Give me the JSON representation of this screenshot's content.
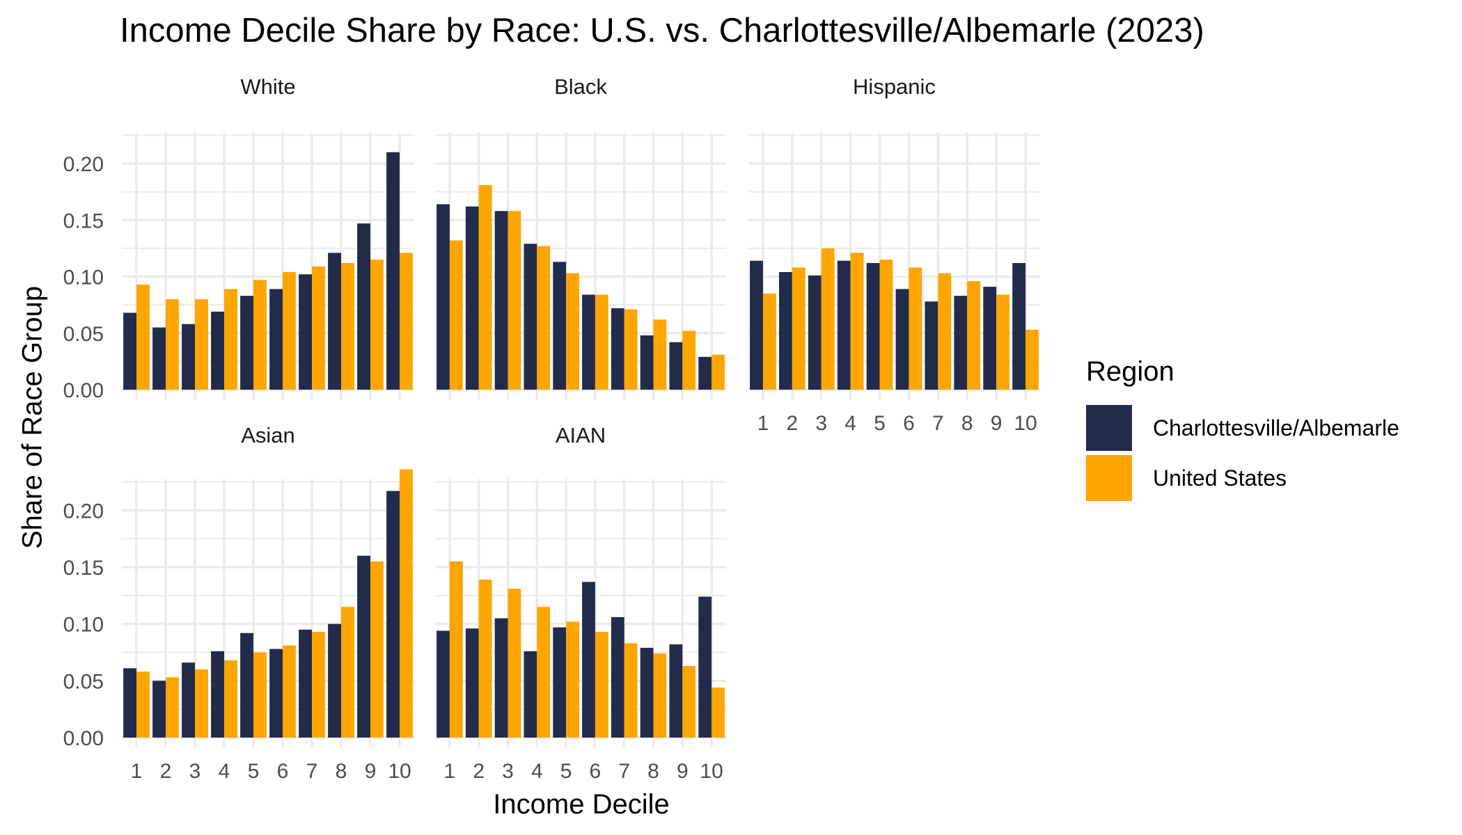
{
  "title": "Income Decile Share by Race: U.S. vs. Charlottesville/Albemarle (2023)",
  "colors": {
    "charlottesville": "#222b4a",
    "united_states": "#ffa500",
    "grid": "#ebebeb",
    "tick_text": "#4d4d4d"
  },
  "chart_data": {
    "type": "bar",
    "title": "Income Decile Share by Race: U.S. vs. Charlottesville/Albemarle (2023)",
    "xlabel": "Income Decile",
    "ylabel": "Share of Race Group",
    "ylim": [
      0,
      0.24
    ],
    "yticks": [
      "0.00",
      "0.05",
      "0.10",
      "0.15",
      "0.20"
    ],
    "categories": [
      "1",
      "2",
      "3",
      "4",
      "5",
      "6",
      "7",
      "8",
      "9",
      "10"
    ],
    "grid": true,
    "legend": {
      "title": "Region",
      "position": "right",
      "entries": [
        "Charlottesville/Albemarle",
        "United States"
      ]
    },
    "panels": [
      {
        "name": "White",
        "series": [
          {
            "name": "Charlottesville/Albemarle",
            "values": [
              0.068,
              0.055,
              0.058,
              0.069,
              0.083,
              0.089,
              0.102,
              0.121,
              0.147,
              0.21
            ]
          },
          {
            "name": "United States",
            "values": [
              0.093,
              0.08,
              0.08,
              0.089,
              0.097,
              0.104,
              0.109,
              0.112,
              0.115,
              0.121
            ]
          }
        ]
      },
      {
        "name": "Black",
        "series": [
          {
            "name": "Charlottesville/Albemarle",
            "values": [
              0.164,
              0.162,
              0.158,
              0.129,
              0.113,
              0.084,
              0.072,
              0.048,
              0.042,
              0.029
            ]
          },
          {
            "name": "United States",
            "values": [
              0.132,
              0.181,
              0.158,
              0.127,
              0.103,
              0.084,
              0.071,
              0.062,
              0.052,
              0.031
            ]
          }
        ]
      },
      {
        "name": "Hispanic",
        "series": [
          {
            "name": "Charlottesville/Albemarle",
            "values": [
              0.114,
              0.104,
              0.101,
              0.114,
              0.112,
              0.089,
              0.078,
              0.083,
              0.091,
              0.112
            ]
          },
          {
            "name": "United States",
            "values": [
              0.085,
              0.108,
              0.125,
              0.121,
              0.115,
              0.108,
              0.103,
              0.096,
              0.084,
              0.053
            ]
          }
        ]
      },
      {
        "name": "Asian",
        "series": [
          {
            "name": "Charlottesville/Albemarle",
            "values": [
              0.061,
              0.05,
              0.066,
              0.076,
              0.092,
              0.078,
              0.095,
              0.1,
              0.16,
              0.217
            ]
          },
          {
            "name": "United States",
            "values": [
              0.058,
              0.053,
              0.06,
              0.068,
              0.075,
              0.081,
              0.093,
              0.115,
              0.155,
              0.236
            ]
          }
        ]
      },
      {
        "name": "AIAN",
        "series": [
          {
            "name": "Charlottesville/Albemarle",
            "values": [
              0.094,
              0.096,
              0.105,
              0.076,
              0.097,
              0.137,
              0.106,
              0.079,
              0.082,
              0.124
            ]
          },
          {
            "name": "United States",
            "values": [
              0.155,
              0.139,
              0.131,
              0.115,
              0.102,
              0.093,
              0.083,
              0.074,
              0.063,
              0.044
            ]
          }
        ]
      }
    ]
  }
}
